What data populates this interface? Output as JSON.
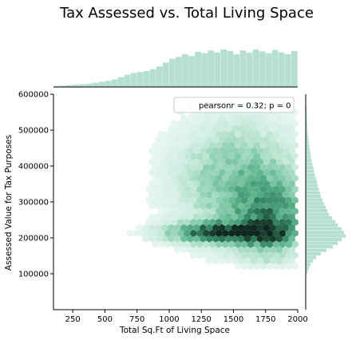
{
  "chart_data": {
    "type": "hexbin",
    "title": "Tax Assessed vs. Total Living Space",
    "xlabel": "Total Sq.Ft of Living Space",
    "ylabel": "Assessed Value for Tax Purposes",
    "xlim": [
      100,
      2000
    ],
    "ylim": [
      0,
      600000
    ],
    "xticks": [
      "250",
      "500",
      "750",
      "1000",
      "1250",
      "1500",
      "1750",
      "2000"
    ],
    "xtick_values": [
      250,
      500,
      750,
      1000,
      1250,
      1500,
      1750,
      2000
    ],
    "yticks": [
      "100000",
      "200000",
      "300000",
      "400000",
      "500000",
      "600000"
    ],
    "ytick_values": [
      100000,
      200000,
      300000,
      400000,
      500000,
      600000
    ],
    "legend": "pearsonr = 0.32; p = 0",
    "colors": {
      "bar": "#b5dfd1",
      "hex_low": "#f4fbf8",
      "hex_mid": "#55b58c",
      "hex_high": "#1d4a38"
    },
    "marginal_x": {
      "bin_start": 100,
      "bin_width": 50,
      "counts": [
        2,
        3,
        4,
        5,
        6,
        7,
        9,
        11,
        13,
        16,
        21,
        26,
        30,
        32,
        34,
        38,
        44,
        52,
        60,
        64,
        70,
        66,
        75,
        72,
        78,
        74,
        80,
        77,
        70,
        78,
        73,
        80,
        76,
        72,
        79,
        74,
        70,
        77
      ]
    },
    "marginal_y": {
      "bin_start": 100000,
      "bin_width": 10000,
      "counts": [
        5,
        8,
        12,
        18,
        26,
        38,
        52,
        68,
        80,
        90,
        100,
        96,
        90,
        80,
        74,
        66,
        58,
        54,
        50,
        46,
        42,
        38,
        36,
        33,
        30,
        28,
        26,
        23,
        21,
        19,
        17,
        15,
        13,
        12,
        10,
        9,
        8,
        7,
        6,
        5,
        4,
        4,
        3,
        3,
        2,
        2,
        2,
        1,
        1,
        1
      ]
    }
  }
}
